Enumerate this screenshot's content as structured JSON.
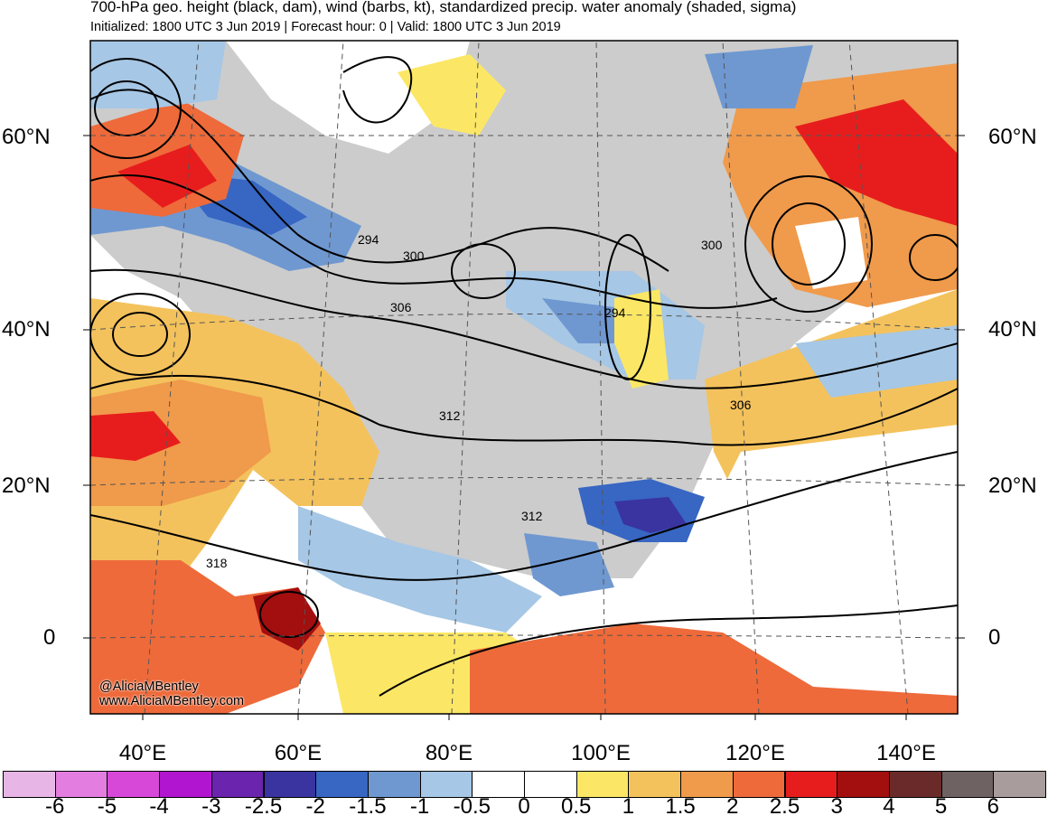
{
  "header": {
    "title": "700-hPa geo. height (black, dam), wind (barbs, kt), standardized precip. water anomaly (shaded, sigma)",
    "subtitle": "Initialized: 1800 UTC 3 Jun 2019 | Forecast hour: 0 | Valid: 1800 UTC 3 Jun 2019"
  },
  "map": {
    "lat_labels_left": [
      "60°N",
      "40°N",
      "20°N",
      "0"
    ],
    "lat_labels_right": [
      "60°N",
      "40°N",
      "20°N",
      "0"
    ],
    "lon_labels": [
      "40°E",
      "60°E",
      "80°E",
      "100°E",
      "120°E",
      "140°E"
    ],
    "contour_labels": [
      "294",
      "300",
      "306",
      "312",
      "312",
      "318",
      "294",
      "300",
      "306"
    ],
    "credit_handle": "@AliciaMBentley",
    "credit_url": "www.AliciaMBentley.com"
  },
  "colorbar": {
    "labels": [
      "-6",
      "-5",
      "-4",
      "-3",
      "-2.5",
      "-2",
      "-1.5",
      "-1",
      "-0.5",
      "0",
      "0.5",
      "1",
      "1.5",
      "2",
      "2.5",
      "3",
      "4",
      "5",
      "6"
    ],
    "colors": [
      "#e8b6e6",
      "#e37de0",
      "#d748d8",
      "#b215cf",
      "#6a24ad",
      "#3a34a0",
      "#3766c3",
      "#6f98d1",
      "#a6c7e5",
      "#ffffff",
      "#ffffff",
      "#fbe765",
      "#f4c25c",
      "#f09a4b",
      "#ee6a3a",
      "#e71d1d",
      "#a30e0e",
      "#6b2a2a",
      "#6e6262",
      "#a89c9c"
    ]
  }
}
